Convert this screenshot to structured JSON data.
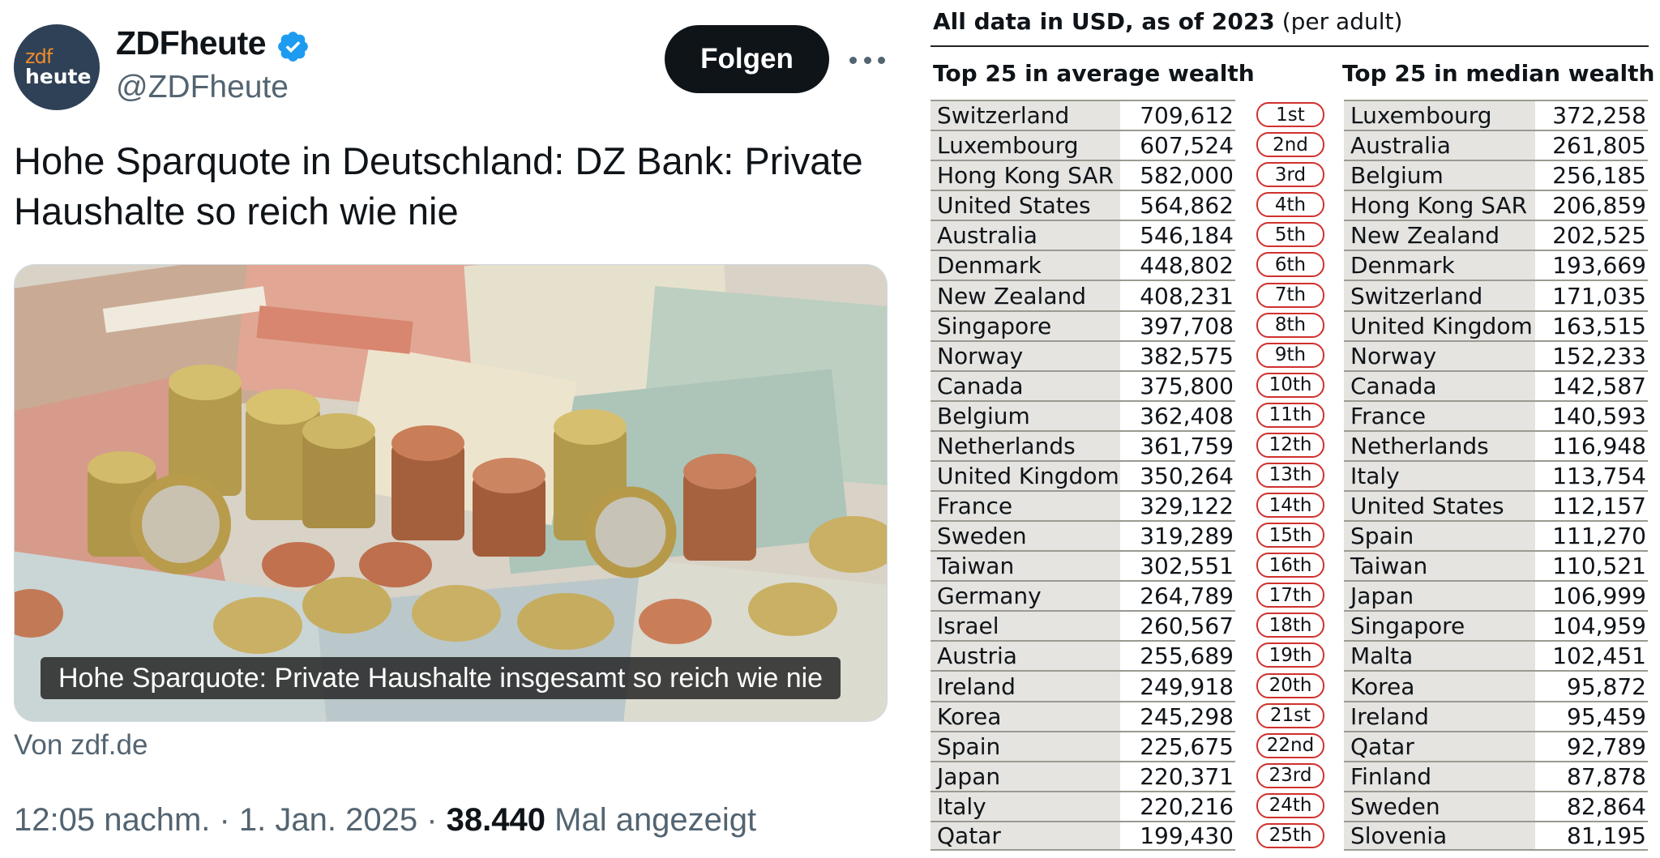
{
  "tweet": {
    "avatar": {
      "line1": "zdf",
      "line2": "heute"
    },
    "display_name": "ZDFheute",
    "verified_icon": "verified-badge-icon",
    "handle": "@ZDFheute",
    "follow_label": "Folgen",
    "more_icon": "more-options-icon",
    "text": "Hohe Sparquote in Deutschland: DZ Bank: Private Haushalte so reich wie nie",
    "media_caption": "Hohe Sparquote: Private Haushalte insgesamt so reich wie nie",
    "source": "Von zdf.de",
    "time_date": "12:05 nachm. · 1. Jan. 2025 · ",
    "views_count": "38.440",
    "views_label": "Mal angezeigt"
  },
  "table": {
    "title_bold": "All data in USD, as of 2023",
    "title_rest": "(per adult)",
    "avg_header": "Top 25 in average wealth",
    "median_header": "Top 25 in median wealth",
    "average": [
      {
        "country": "Switzerland",
        "value": "709,612"
      },
      {
        "country": "Luxembourg",
        "value": "607,524"
      },
      {
        "country": "Hong Kong SAR",
        "value": "582,000"
      },
      {
        "country": "United States",
        "value": "564,862"
      },
      {
        "country": "Australia",
        "value": "546,184"
      },
      {
        "country": "Denmark",
        "value": "448,802"
      },
      {
        "country": "New Zealand",
        "value": "408,231"
      },
      {
        "country": "Singapore",
        "value": "397,708"
      },
      {
        "country": "Norway",
        "value": "382,575"
      },
      {
        "country": "Canada",
        "value": "375,800"
      },
      {
        "country": "Belgium",
        "value": "362,408"
      },
      {
        "country": "Netherlands",
        "value": "361,759"
      },
      {
        "country": "United Kingdom",
        "value": "350,264"
      },
      {
        "country": "France",
        "value": "329,122"
      },
      {
        "country": "Sweden",
        "value": "319,289"
      },
      {
        "country": "Taiwan",
        "value": "302,551"
      },
      {
        "country": "Germany",
        "value": "264,789"
      },
      {
        "country": "Israel",
        "value": "260,567"
      },
      {
        "country": "Austria",
        "value": "255,689"
      },
      {
        "country": "Ireland",
        "value": "249,918"
      },
      {
        "country": "Korea",
        "value": "245,298"
      },
      {
        "country": "Spain",
        "value": "225,675"
      },
      {
        "country": "Japan",
        "value": "220,371"
      },
      {
        "country": "Italy",
        "value": "220,216"
      },
      {
        "country": "Qatar",
        "value": "199,430"
      }
    ],
    "ranks": [
      "1st",
      "2nd",
      "3rd",
      "4th",
      "5th",
      "6th",
      "7th",
      "8th",
      "9th",
      "10th",
      "11th",
      "12th",
      "13th",
      "14th",
      "15th",
      "16th",
      "17th",
      "18th",
      "19th",
      "20th",
      "21st",
      "22nd",
      "23rd",
      "24th",
      "25th"
    ],
    "median": [
      {
        "country": "Luxembourg",
        "value": "372,258"
      },
      {
        "country": "Australia",
        "value": "261,805"
      },
      {
        "country": "Belgium",
        "value": "256,185"
      },
      {
        "country": "Hong Kong SAR",
        "value": "206,859"
      },
      {
        "country": "New Zealand",
        "value": "202,525"
      },
      {
        "country": "Denmark",
        "value": "193,669"
      },
      {
        "country": "Switzerland",
        "value": "171,035"
      },
      {
        "country": "United Kingdom",
        "value": "163,515"
      },
      {
        "country": "Norway",
        "value": "152,233"
      },
      {
        "country": "Canada",
        "value": "142,587"
      },
      {
        "country": "France",
        "value": "140,593"
      },
      {
        "country": "Netherlands",
        "value": "116,948"
      },
      {
        "country": "Italy",
        "value": "113,754"
      },
      {
        "country": "United States",
        "value": "112,157"
      },
      {
        "country": "Spain",
        "value": "111,270"
      },
      {
        "country": "Taiwan",
        "value": "110,521"
      },
      {
        "country": "Japan",
        "value": "106,999"
      },
      {
        "country": "Singapore",
        "value": "104,959"
      },
      {
        "country": "Malta",
        "value": "102,451"
      },
      {
        "country": "Korea",
        "value": "95,872"
      },
      {
        "country": "Ireland",
        "value": "95,459"
      },
      {
        "country": "Qatar",
        "value": "92,789"
      },
      {
        "country": "Finland",
        "value": "87,878"
      },
      {
        "country": "Sweden",
        "value": "82,864"
      },
      {
        "country": "Slovenia",
        "value": "81,195"
      }
    ]
  }
}
